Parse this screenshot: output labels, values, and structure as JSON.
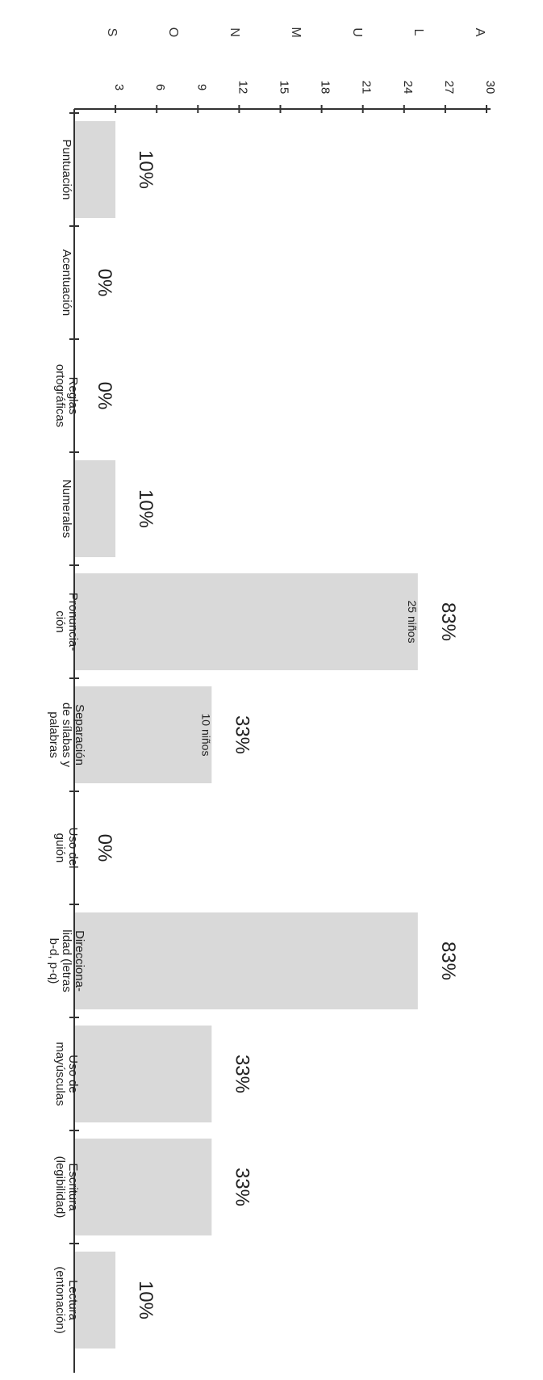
{
  "side_title": [
    "A",
    "L",
    "U",
    "M",
    "N",
    "O",
    "S"
  ],
  "chart_data": {
    "type": "bar",
    "ylabel": "ALUMNOS",
    "ylim": [
      0,
      30
    ],
    "yticks": [
      3,
      6,
      9,
      12,
      15,
      18,
      21,
      24,
      27,
      30
    ],
    "grid": false,
    "categories": [
      [
        "Puntuación"
      ],
      [
        "Acentuación"
      ],
      [
        "Reglas",
        "ortográficas"
      ],
      [
        "Numerales"
      ],
      [
        "Pronuncia-",
        "ción"
      ],
      [
        "Separación",
        "de sílabas y",
        "palabras"
      ],
      [
        "Uso del",
        "guión"
      ],
      [
        "Direcciona-",
        "lidad (letras",
        "b-d, p-q)"
      ],
      [
        "Uso de",
        "mayúsculas"
      ],
      [
        "Escritura",
        "(legibilidad)"
      ],
      [
        "Lectura",
        "(entonación)"
      ]
    ],
    "values": [
      3,
      0,
      0,
      3,
      25,
      10,
      0,
      25,
      10,
      10,
      3
    ],
    "percent_labels": [
      "10%",
      "0%",
      "0%",
      "10%",
      "83%",
      "33%",
      "0%",
      "83%",
      "33%",
      "33%",
      "10%"
    ],
    "count_labels": [
      "",
      "",
      "",
      "",
      "25 niños",
      "10 niños",
      "",
      "",
      "",
      "",
      ""
    ],
    "colors": {
      "bar": "#d9d9d9",
      "axis": "#333333"
    }
  }
}
